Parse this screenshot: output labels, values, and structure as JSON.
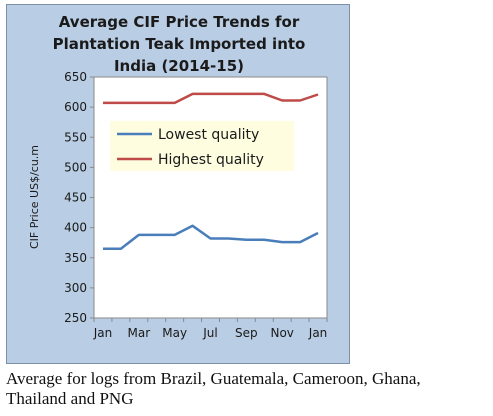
{
  "chart_data": {
    "type": "line",
    "title_lines": [
      "Average CIF Price Trends for",
      "Plantation Teak Imported into",
      "India (2014-15)"
    ],
    "xlabel": "",
    "ylabel": "CIF Price US$/cu.m",
    "ylim": [
      250,
      650
    ],
    "yticks": [
      "250",
      "300",
      "350",
      "400",
      "450",
      "500",
      "550",
      "600",
      "650"
    ],
    "x_tick_labels": [
      "Jan",
      "Mar",
      "May",
      "Jul",
      "Sep",
      "Nov",
      "Jan"
    ],
    "grid": false,
    "legend_position": "upper-center",
    "series": [
      {
        "name": "Lowest quality",
        "color": "#4a7ebb",
        "values": [
          365,
          365,
          388,
          388,
          388,
          403,
          382,
          382,
          380,
          380,
          376,
          376,
          391
        ]
      },
      {
        "name": "Highest quality",
        "color": "#be4b48",
        "values": [
          607,
          607,
          607,
          607,
          607,
          622,
          622,
          622,
          622,
          622,
          611,
          611,
          621
        ]
      }
    ]
  },
  "caption": {
    "line1": "Average for logs from Brazil, Guatemala, Cameroon, Ghana,",
    "line2": "Thailand and PNG"
  },
  "colors": {
    "panel_background": "#b9cde4",
    "plot_background": "#ffffff",
    "legend_background": "#fffde0"
  }
}
